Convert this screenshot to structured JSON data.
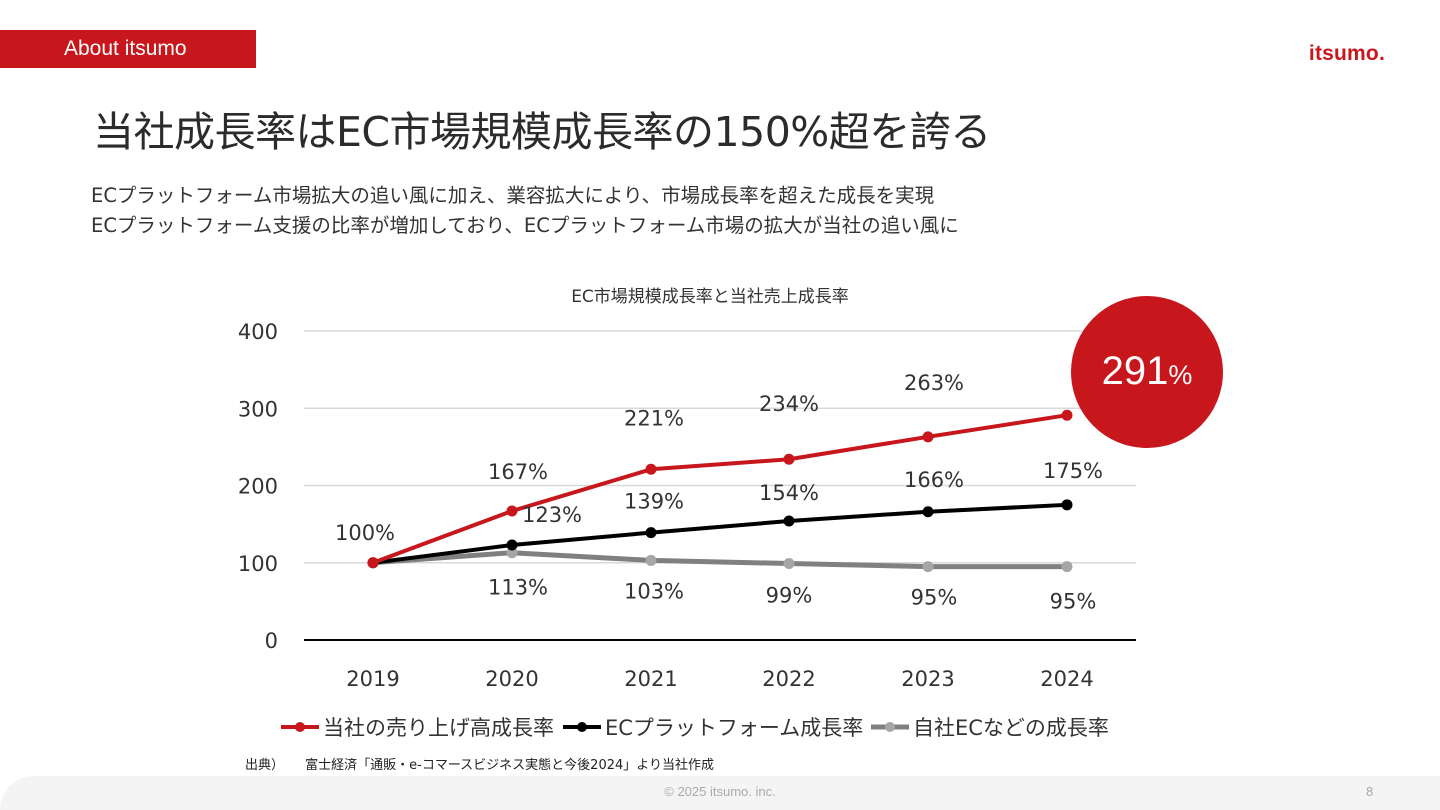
{
  "header": {
    "section_tag": "About itsumo",
    "logo": "itsumo."
  },
  "title": "当社成長率はEC市場規模成長率の150%超を誇る",
  "subtitle_lines": [
    "ECプラットフォーム市場拡大の追い風に加え、業容拡大により、市場成長率を超えた成長を実現",
    "ECプラットフォーム支援の比率が増加しており、ECプラットフォーム市場の拡大が当社の追い風に"
  ],
  "highlight": {
    "value": "291",
    "unit": "%",
    "color": "#c8161d"
  },
  "chart_data": {
    "type": "line",
    "title": "EC市場規模成長率と当社売上成長率",
    "categories": [
      "2019",
      "2020",
      "2021",
      "2022",
      "2023",
      "2024"
    ],
    "ylim": [
      0,
      400
    ],
    "yticks": [
      "0",
      "100",
      "200",
      "300",
      "400"
    ],
    "grid": true,
    "legend_position": "bottom",
    "series": [
      {
        "name": "当社の売り上げ高成長率",
        "color": "#c8161d",
        "values": [
          100,
          167,
          221,
          234,
          263,
          291
        ],
        "labels": [
          "100%",
          "167%",
          "221%",
          "234%",
          "263%",
          ""
        ]
      },
      {
        "name": "ECプラットフォーム成長率",
        "color": "#000000",
        "values": [
          100,
          123,
          139,
          154,
          166,
          175
        ],
        "labels": [
          "",
          "123%",
          "139%",
          "154%",
          "166%",
          "175%"
        ]
      },
      {
        "name": "自社ECなどの成長率",
        "color": "#808080",
        "marker_color": "#a6a6a6",
        "values": [
          100,
          113,
          103,
          99,
          95,
          95
        ],
        "labels": [
          "",
          "113%",
          "103%",
          "99%",
          "95%",
          "95%"
        ]
      }
    ]
  },
  "source": {
    "label": "出典）",
    "text": "富士経済「通販・e-コマースビジネス実態と今後2024」より当社作成"
  },
  "footer": {
    "copyright": "© 2025 itsumo. inc.",
    "page_number": "8"
  }
}
